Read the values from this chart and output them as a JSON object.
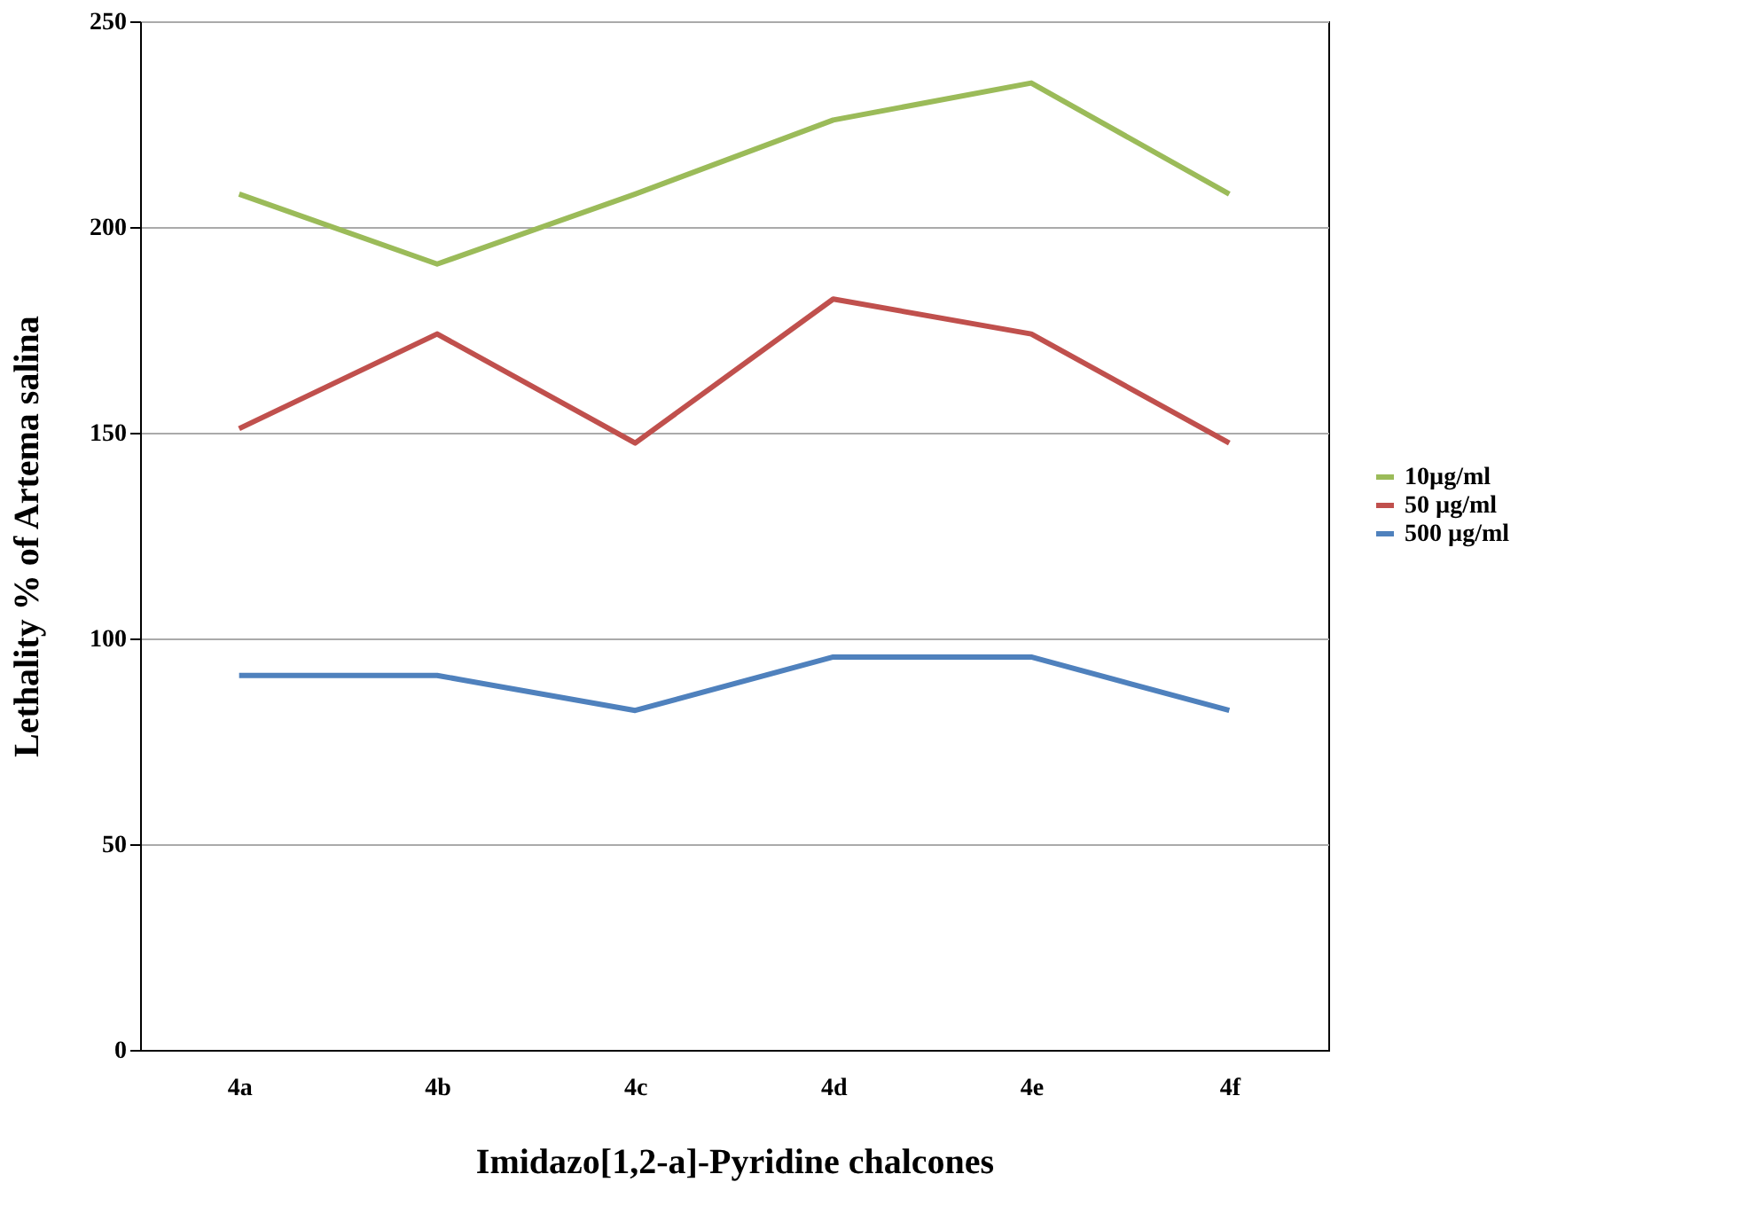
{
  "chart_data": {
    "type": "line",
    "xlabel": "Imidazo[1,2-a]-Pyridine chalcones",
    "ylabel": "Lethality % of Artema salina",
    "categories": [
      "4a",
      "4b",
      "4c",
      "4d",
      "4e",
      "4f"
    ],
    "series": [
      {
        "name": "10µg/ml",
        "color": "#9bbb59",
        "values": [
          208,
          191,
          208,
          226,
          235,
          208
        ]
      },
      {
        "name": "50 µg/ml",
        "color": "#c0504d",
        "values": [
          151,
          174,
          147.5,
          182.5,
          174,
          147.5
        ]
      },
      {
        "name": "500 µg/ml",
        "color": "#4f81bd",
        "values": [
          91,
          91,
          82.5,
          95.5,
          95.5,
          82.5
        ]
      }
    ],
    "ylim": [
      0,
      250
    ],
    "yticks": [
      0,
      50,
      100,
      150,
      200,
      250
    ],
    "grid": "y",
    "legend": "right",
    "marker": "none",
    "line_style": "solid"
  }
}
